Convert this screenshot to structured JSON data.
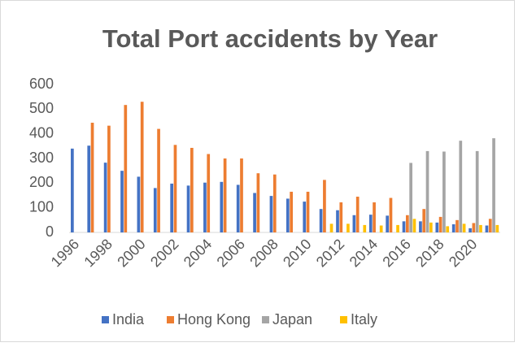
{
  "chart_data": {
    "type": "bar",
    "title": "Total Port accidents by Year",
    "categories": [
      "1996",
      null,
      "1998",
      null,
      "2000",
      null,
      "2002",
      null,
      "2004",
      null,
      "2006",
      null,
      "2008",
      null,
      "2010",
      null,
      "2012",
      null,
      "2014",
      null,
      "2016",
      null,
      "2018",
      null,
      "2020",
      null
    ],
    "series": [
      {
        "name": "India",
        "color": "#4472c4",
        "values": [
          340,
          352,
          283,
          250,
          226,
          180,
          198,
          190,
          202,
          205,
          193,
          160,
          148,
          137,
          125,
          95,
          90,
          70,
          72,
          68,
          45,
          45,
          40,
          33,
          17,
          28
        ]
      },
      {
        "name": "Hong Kong",
        "color": "#ed7d31",
        "values": [
          null,
          445,
          433,
          517,
          530,
          420,
          355,
          343,
          318,
          300,
          300,
          240,
          235,
          165,
          165,
          213,
          122,
          145,
          122,
          140,
          70,
          95,
          63,
          50,
          38,
          55
        ]
      },
      {
        "name": "Japan",
        "color": "#a5a5a5",
        "values": [
          null,
          null,
          null,
          null,
          null,
          null,
          null,
          null,
          null,
          null,
          null,
          null,
          null,
          null,
          null,
          null,
          null,
          null,
          null,
          null,
          282,
          330,
          328,
          372,
          330,
          382
        ]
      },
      {
        "name": "Italy",
        "color": "#ffc000",
        "values": [
          null,
          null,
          null,
          null,
          null,
          null,
          null,
          null,
          null,
          null,
          null,
          null,
          null,
          null,
          null,
          35,
          35,
          30,
          28,
          30,
          55,
          40,
          25,
          35,
          30,
          30
        ]
      }
    ],
    "ylim": [
      0,
      600
    ],
    "yticks": [
      0,
      100,
      200,
      300,
      400,
      500,
      600
    ],
    "legend": "bottom"
  }
}
